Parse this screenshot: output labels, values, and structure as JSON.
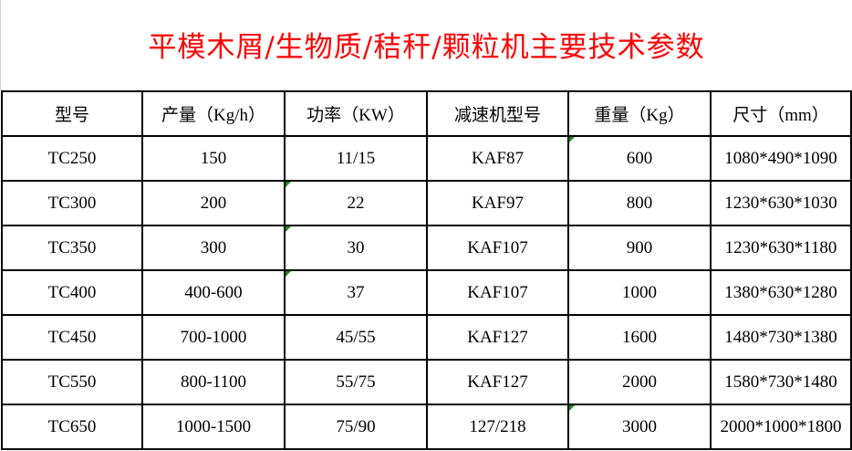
{
  "title": "平模木屑/生物质/秸秆/颗粒机主要技术参数",
  "headers": [
    "型号",
    "产量（Kg/h）",
    "功率（KW）",
    "减速机型号",
    "重量（Kg）",
    "尺寸（mm）"
  ],
  "rows": [
    [
      "TC250",
      "150",
      "11/15",
      "KAF87",
      "600",
      "1080*490*1090"
    ],
    [
      "TC300",
      "200",
      "22",
      "KAF97",
      "800",
      "1230*630*1030"
    ],
    [
      "TC350",
      "300",
      "30",
      "KAF107",
      "900",
      "1230*630*1180"
    ],
    [
      "TC400",
      "400-600",
      "37",
      "KAF107",
      "1000",
      "1380*630*1280"
    ],
    [
      "TC450",
      "700-1000",
      "45/55",
      "KAF127",
      "1600",
      "1480*730*1380"
    ],
    [
      "TC550",
      "800-1100",
      "55/75",
      "KAF127",
      "2000",
      "1580*730*1480"
    ],
    [
      "TC650",
      "1000-1500",
      "75/90",
      "127/218",
      "3000",
      "2000*1000*1800"
    ]
  ],
  "colors": {
    "title": "#ff0000",
    "comment_marker": "#1a8a1a"
  }
}
